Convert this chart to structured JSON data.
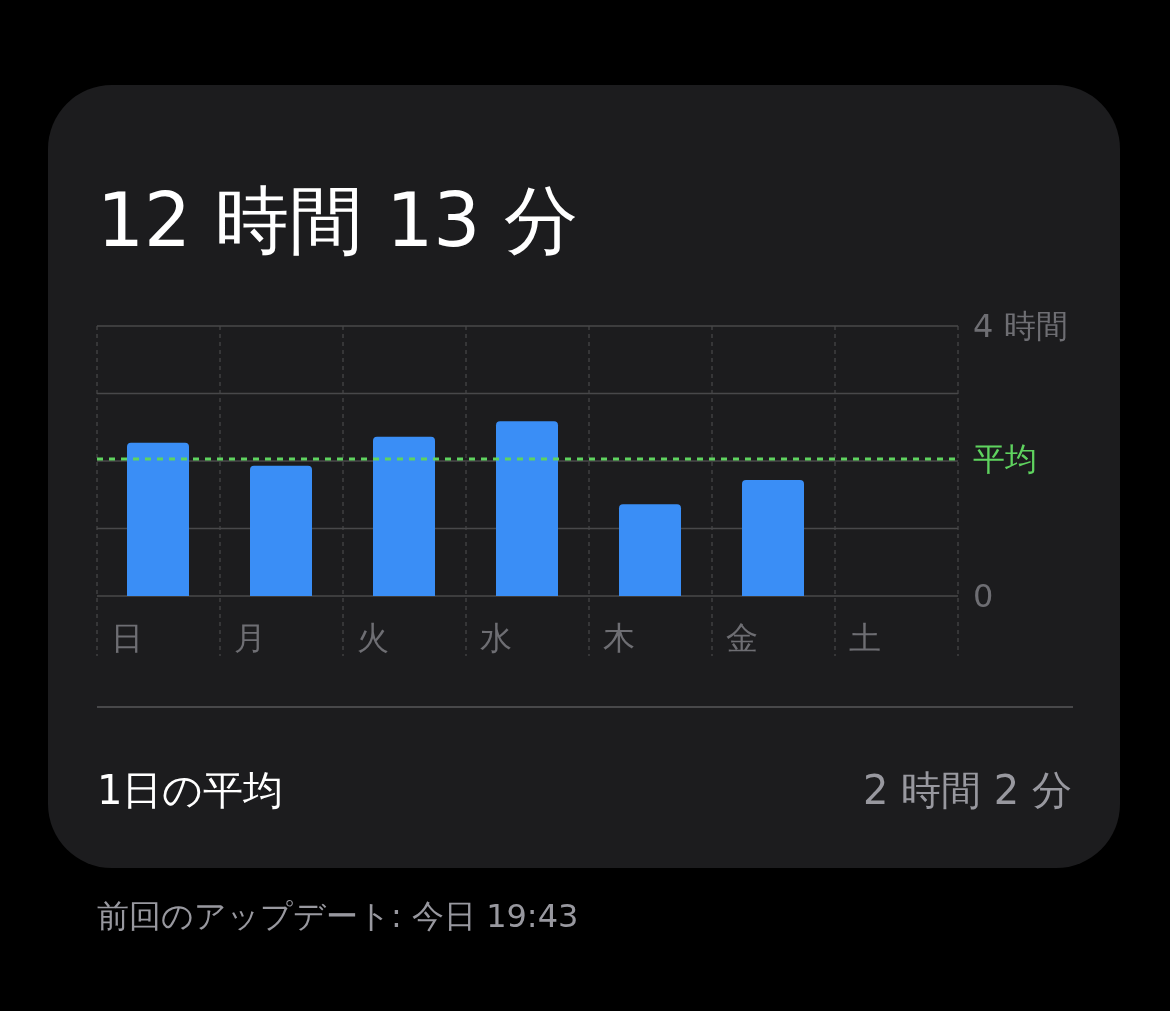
{
  "chart_data": {
    "type": "bar",
    "categories": [
      "日",
      "月",
      "火",
      "水",
      "木",
      "金",
      "土"
    ],
    "values": [
      2.27,
      1.93,
      2.36,
      2.59,
      1.36,
      1.72,
      null
    ],
    "color": "#3a8ef6",
    "ylim": [
      0,
      4
    ],
    "yticks": [
      {
        "value": 0,
        "label": "0"
      },
      {
        "value": 1,
        "label": null
      },
      {
        "value": 2,
        "label": null
      },
      {
        "value": 3,
        "label": null
      },
      {
        "value": 4,
        "label": "4 時間"
      }
    ],
    "grid": true,
    "ref_lines": [
      {
        "axis": "y",
        "value": 2.03,
        "label": "平均",
        "color": "#5fd35f",
        "line_style": "dashed"
      }
    ],
    "annotations": [
      "12 時間 13 分",
      "1日の平均",
      "2 時間 2 分",
      "前回のアップデート: 今日 19:43"
    ]
  }
}
